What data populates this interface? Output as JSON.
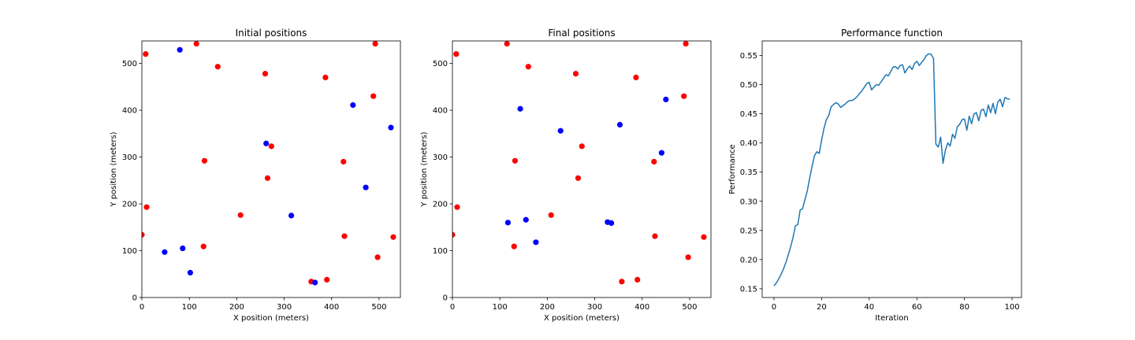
{
  "chart_data": [
    {
      "type": "scatter",
      "title": "Initial positions",
      "xlabel": "X position (meters)",
      "ylabel": "Y position (meters)",
      "xlim": [
        0,
        545
      ],
      "ylim": [
        0,
        548
      ],
      "xticks": [
        0,
        100,
        200,
        300,
        400,
        500
      ],
      "yticks": [
        0,
        100,
        200,
        300,
        400,
        500
      ],
      "grid": false,
      "series": [
        {
          "color": "#ff0000",
          "points": [
            [
              8,
              520
            ],
            [
              115,
              542
            ],
            [
              160,
              493
            ],
            [
              260,
              478
            ],
            [
              387,
              470
            ],
            [
              492,
              542
            ],
            [
              488,
              430
            ],
            [
              273,
              323
            ],
            [
              132,
              292
            ],
            [
              425,
              290
            ],
            [
              265,
              255
            ],
            [
              10,
              193
            ],
            [
              208,
              176
            ],
            [
              0,
              134
            ],
            [
              427,
              131
            ],
            [
              530,
              129
            ],
            [
              130,
              109
            ],
            [
              497,
              86
            ],
            [
              357,
              34
            ],
            [
              390,
              38
            ]
          ]
        },
        {
          "color": "#0000ff",
          "points": [
            [
              80,
              529
            ],
            [
              445,
              411
            ],
            [
              525,
              363
            ],
            [
              262,
              329
            ],
            [
              472,
              235
            ],
            [
              315,
              175
            ],
            [
              48,
              97
            ],
            [
              86,
              105
            ],
            [
              102,
              53
            ],
            [
              365,
              32
            ]
          ]
        }
      ]
    },
    {
      "type": "scatter",
      "title": "Final positions",
      "xlabel": "X position (meters)",
      "ylabel": "Y position (meters)",
      "xlim": [
        0,
        545
      ],
      "ylim": [
        0,
        548
      ],
      "xticks": [
        0,
        100,
        200,
        300,
        400,
        500
      ],
      "yticks": [
        0,
        100,
        200,
        300,
        400,
        500
      ],
      "grid": false,
      "series": [
        {
          "color": "#ff0000",
          "points": [
            [
              8,
              520
            ],
            [
              115,
              542
            ],
            [
              160,
              493
            ],
            [
              260,
              478
            ],
            [
              387,
              470
            ],
            [
              492,
              542
            ],
            [
              488,
              430
            ],
            [
              273,
              323
            ],
            [
              132,
              292
            ],
            [
              425,
              290
            ],
            [
              265,
              255
            ],
            [
              10,
              193
            ],
            [
              208,
              176
            ],
            [
              0,
              134
            ],
            [
              427,
              131
            ],
            [
              530,
              129
            ],
            [
              130,
              109
            ],
            [
              497,
              86
            ],
            [
              357,
              34
            ],
            [
              390,
              38
            ]
          ]
        },
        {
          "color": "#0000ff",
          "points": [
            [
              143,
              403
            ],
            [
              450,
              423
            ],
            [
              228,
              356
            ],
            [
              353,
              369
            ],
            [
              441,
              309
            ],
            [
              117,
              160
            ],
            [
              155,
              166
            ],
            [
              176,
              118
            ],
            [
              327,
              161
            ],
            [
              335,
              159
            ]
          ]
        }
      ]
    },
    {
      "type": "line",
      "title": "Performance function",
      "xlabel": "Iteration",
      "ylabel": "Performance",
      "xlim": [
        -4.95,
        103.95
      ],
      "ylim": [
        0.135,
        0.575
      ],
      "xticks": [
        0,
        20,
        40,
        60,
        80,
        100
      ],
      "yticks": [
        0.15,
        0.2,
        0.25,
        0.3,
        0.35,
        0.4,
        0.45,
        0.5,
        0.55
      ],
      "yticklabels": [
        "0.15",
        "0.20",
        "0.25",
        "0.30",
        "0.35",
        "0.40",
        "0.45",
        "0.50",
        "0.55"
      ],
      "grid": false,
      "series": [
        {
          "color": "#1f77b4",
          "x": [
            0,
            1,
            2,
            3,
            4,
            5,
            6,
            7,
            8,
            9,
            10,
            11,
            12,
            13,
            14,
            15,
            16,
            17,
            18,
            19,
            20,
            21,
            22,
            23,
            24,
            25,
            26,
            27,
            28,
            29,
            30,
            31,
            32,
            33,
            34,
            35,
            36,
            37,
            38,
            39,
            40,
            41,
            42,
            43,
            44,
            45,
            46,
            47,
            48,
            49,
            50,
            51,
            52,
            53,
            54,
            55,
            56,
            57,
            58,
            59,
            60,
            61,
            62,
            63,
            64,
            65,
            66,
            67,
            68,
            69,
            70,
            71,
            72,
            73,
            74,
            75,
            76,
            77,
            78,
            79,
            80,
            81,
            82,
            83,
            84,
            85,
            86,
            87,
            88,
            89,
            90,
            91,
            92,
            93,
            94,
            95,
            96,
            97,
            98,
            99
          ],
          "y": [
            0.155,
            0.16,
            0.167,
            0.175,
            0.184,
            0.195,
            0.208,
            0.222,
            0.238,
            0.258,
            0.26,
            0.285,
            0.287,
            0.303,
            0.318,
            0.34,
            0.36,
            0.378,
            0.385,
            0.382,
            0.405,
            0.425,
            0.44,
            0.447,
            0.462,
            0.466,
            0.469,
            0.467,
            0.461,
            0.464,
            0.467,
            0.471,
            0.473,
            0.473,
            0.476,
            0.48,
            0.485,
            0.49,
            0.496,
            0.502,
            0.504,
            0.491,
            0.496,
            0.5,
            0.499,
            0.505,
            0.511,
            0.517,
            0.515,
            0.522,
            0.53,
            0.531,
            0.527,
            0.533,
            0.534,
            0.52,
            0.527,
            0.532,
            0.526,
            0.536,
            0.54,
            0.533,
            0.538,
            0.543,
            0.55,
            0.553,
            0.552,
            0.545,
            0.398,
            0.393,
            0.41,
            0.365,
            0.388,
            0.4,
            0.395,
            0.415,
            0.408,
            0.428,
            0.432,
            0.44,
            0.441,
            0.422,
            0.446,
            0.433,
            0.45,
            0.452,
            0.438,
            0.456,
            0.458,
            0.445,
            0.465,
            0.452,
            0.468,
            0.45,
            0.47,
            0.475,
            0.462,
            0.478,
            0.476,
            0.475
          ]
        }
      ]
    }
  ]
}
